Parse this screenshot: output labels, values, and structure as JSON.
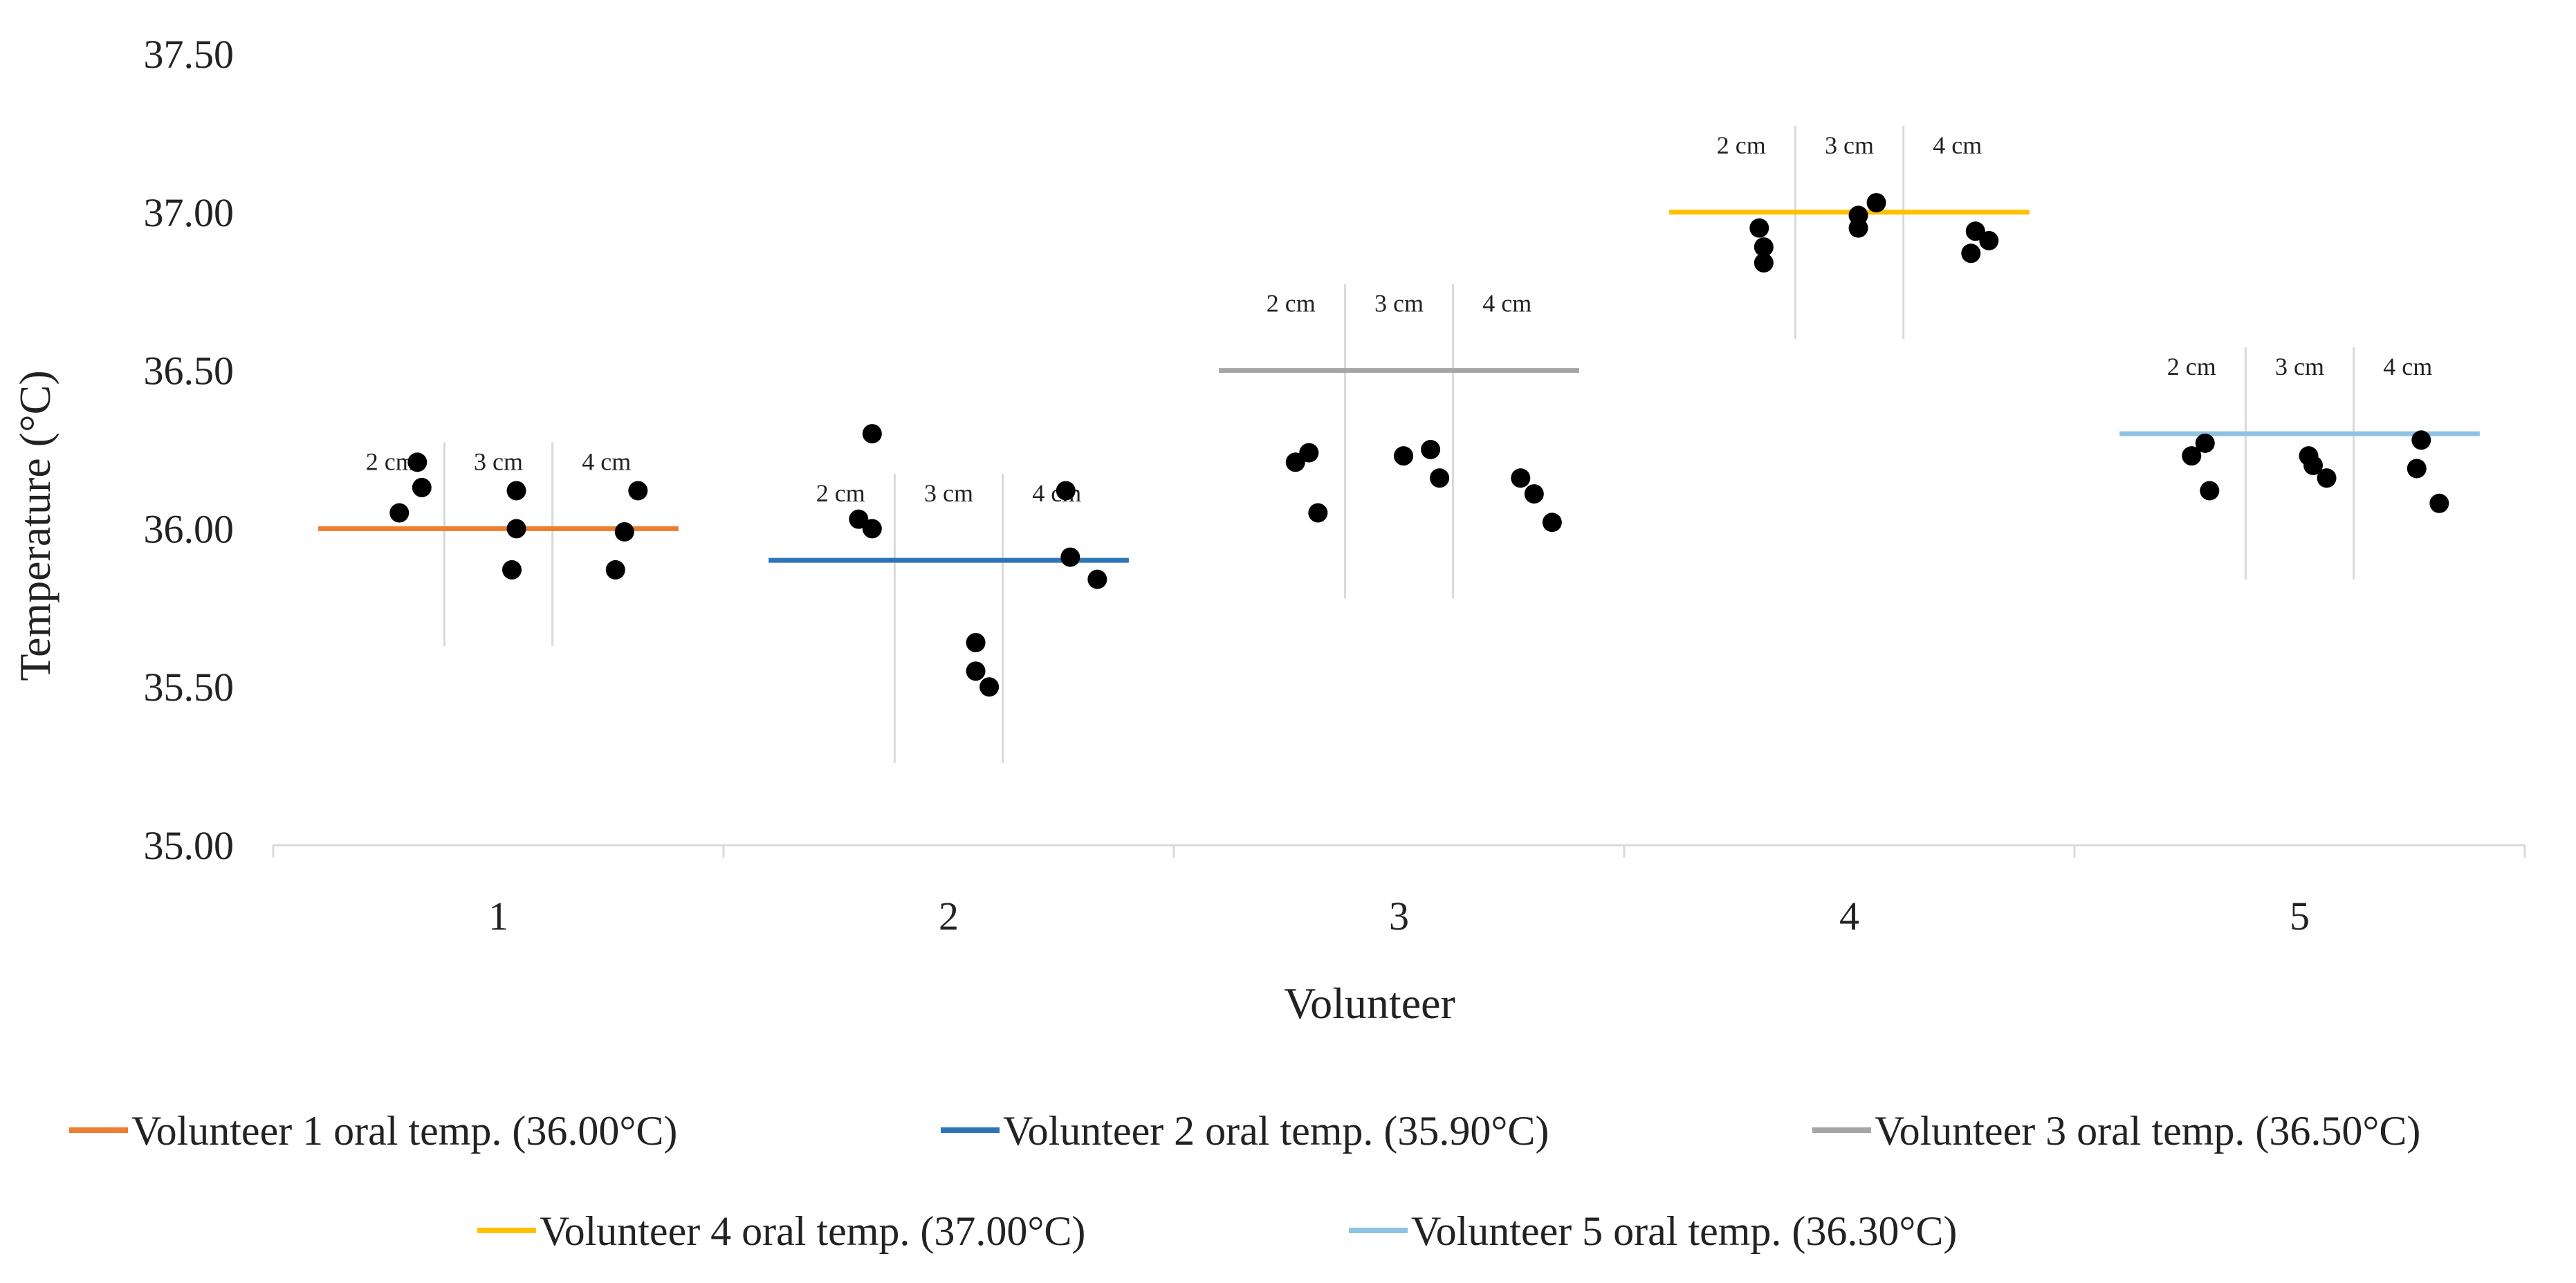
{
  "chart_data": {
    "type": "scatter",
    "title": "",
    "xlabel": "Volunteer",
    "ylabel": "Temperature (°C)",
    "ylim": [
      35.0,
      37.5
    ],
    "yticks": [
      "35.00",
      "35.50",
      "36.00",
      "36.50",
      "37.00",
      "37.50"
    ],
    "categories": [
      "1",
      "2",
      "3",
      "4",
      "5"
    ],
    "distance_labels": [
      "2 cm",
      "3 cm",
      "4 cm"
    ],
    "grid": false,
    "legend_position": "bottom",
    "oral_temps": [
      {
        "volunteer": "1",
        "value": 36.0,
        "color": "#ED7D31",
        "legend": "Volunteer 1 oral temp. (36.00°C)"
      },
      {
        "volunteer": "2",
        "value": 35.9,
        "color": "#2E75B6",
        "legend": "Volunteer 2 oral temp. (35.90°C)"
      },
      {
        "volunteer": "3",
        "value": 36.5,
        "color": "#A5A5A5",
        "legend": "Volunteer 3 oral temp. (36.50°C)"
      },
      {
        "volunteer": "4",
        "value": 37.0,
        "color": "#FFC000",
        "legend": "Volunteer 4 oral temp. (37.00°C)"
      },
      {
        "volunteer": "5",
        "value": 36.3,
        "color": "#8FC3E2",
        "legend": "Volunteer 5 oral temp. (36.30°C)"
      }
    ],
    "measurements": [
      {
        "volunteer": 1,
        "groups": [
          {
            "distance": "2 cm",
            "points": [
              [
                0.78,
                36.05
              ],
              [
                0.82,
                36.21
              ],
              [
                0.83,
                36.13
              ]
            ]
          },
          {
            "distance": "3 cm",
            "points": [
              [
                1.03,
                35.87
              ],
              [
                1.04,
                36.0
              ],
              [
                1.04,
                36.12
              ]
            ]
          },
          {
            "distance": "4 cm",
            "points": [
              [
                1.26,
                35.87
              ],
              [
                1.28,
                35.99
              ],
              [
                1.31,
                36.12
              ]
            ]
          }
        ]
      },
      {
        "volunteer": 2,
        "groups": [
          {
            "distance": "2 cm",
            "points": [
              [
                1.8,
                36.03
              ],
              [
                1.83,
                36.0
              ],
              [
                1.83,
                36.3
              ]
            ]
          },
          {
            "distance": "3 cm",
            "points": [
              [
                2.06,
                35.64
              ],
              [
                2.06,
                35.55
              ],
              [
                2.09,
                35.5
              ]
            ]
          },
          {
            "distance": "4 cm",
            "points": [
              [
                2.26,
                36.12
              ],
              [
                2.27,
                35.91
              ],
              [
                2.33,
                35.84
              ]
            ]
          }
        ]
      },
      {
        "volunteer": 3,
        "groups": [
          {
            "distance": "2 cm",
            "points": [
              [
                2.77,
                36.21
              ],
              [
                2.8,
                36.24
              ],
              [
                2.82,
                36.05
              ]
            ]
          },
          {
            "distance": "3 cm",
            "points": [
              [
                3.01,
                36.23
              ],
              [
                3.07,
                36.25
              ],
              [
                3.09,
                36.16
              ]
            ]
          },
          {
            "distance": "4 cm",
            "points": [
              [
                3.27,
                36.16
              ],
              [
                3.3,
                36.11
              ],
              [
                3.34,
                36.02
              ]
            ]
          }
        ]
      },
      {
        "volunteer": 4,
        "groups": [
          {
            "distance": "2 cm",
            "points": [
              [
                3.8,
                36.95
              ],
              [
                3.81,
                36.89
              ],
              [
                3.81,
                36.84
              ]
            ]
          },
          {
            "distance": "3 cm",
            "points": [
              [
                4.02,
                36.99
              ],
              [
                4.02,
                36.95
              ],
              [
                4.06,
                37.03
              ]
            ]
          },
          {
            "distance": "4 cm",
            "points": [
              [
                4.27,
                36.87
              ],
              [
                4.28,
                36.94
              ],
              [
                4.31,
                36.91
              ]
            ]
          }
        ]
      },
      {
        "volunteer": 5,
        "groups": [
          {
            "distance": "2 cm",
            "points": [
              [
                4.76,
                36.23
              ],
              [
                4.79,
                36.27
              ],
              [
                4.8,
                36.12
              ]
            ]
          },
          {
            "distance": "3 cm",
            "points": [
              [
                5.02,
                36.23
              ],
              [
                5.03,
                36.2
              ],
              [
                5.06,
                36.16
              ]
            ]
          },
          {
            "distance": "4 cm",
            "points": [
              [
                5.26,
                36.19
              ],
              [
                5.27,
                36.28
              ],
              [
                5.31,
                36.08
              ]
            ]
          }
        ]
      }
    ]
  }
}
